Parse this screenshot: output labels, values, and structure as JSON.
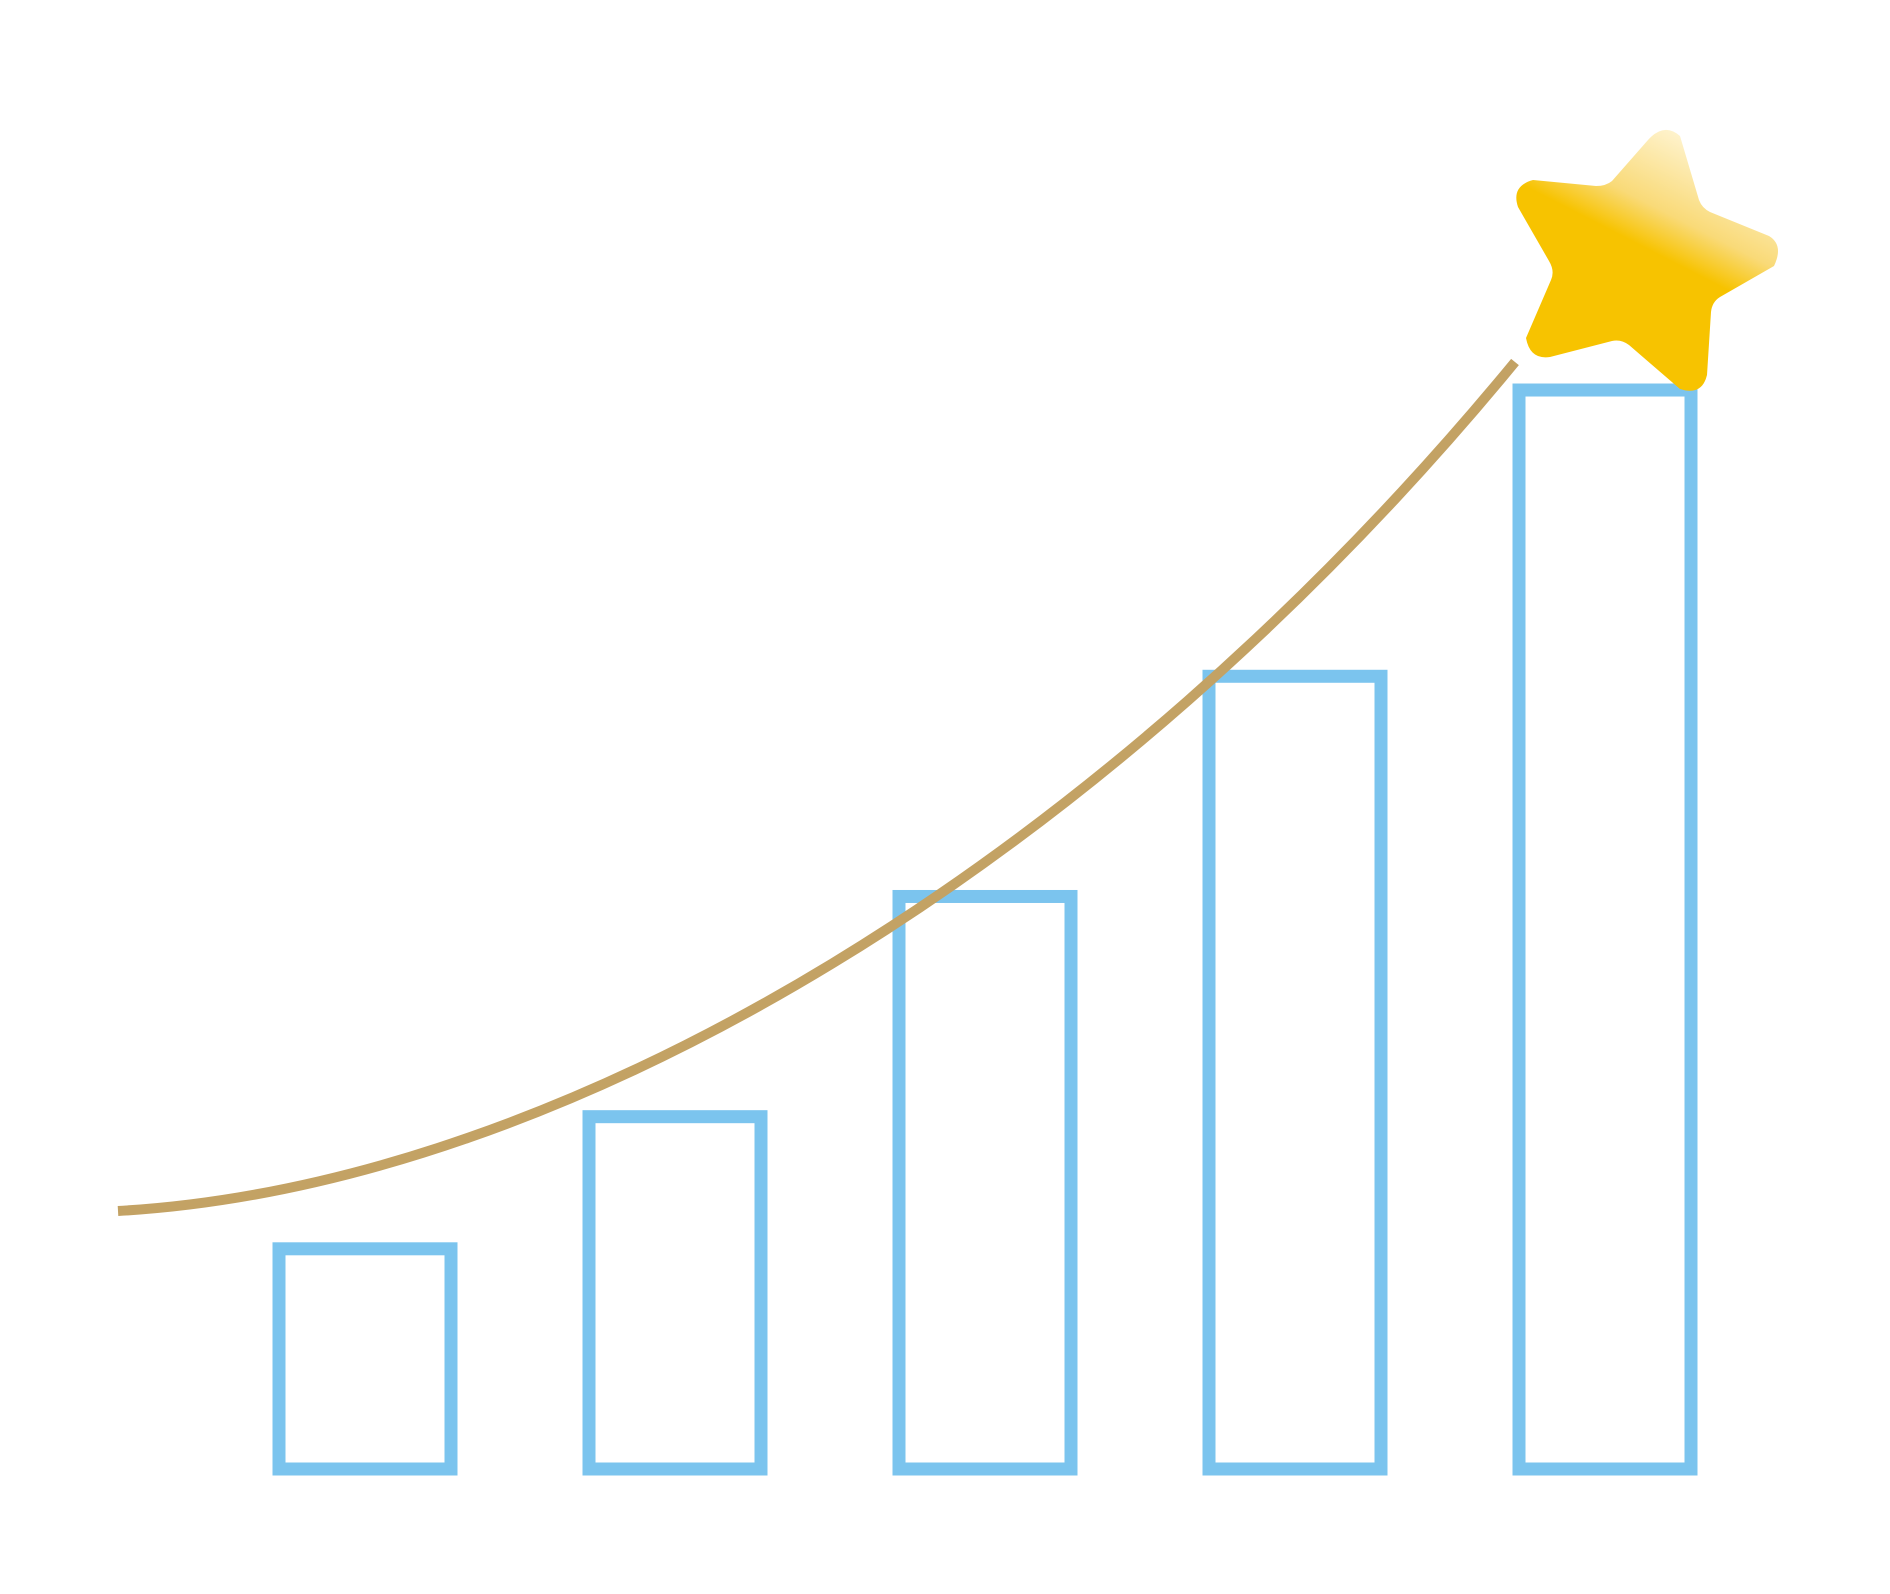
{
  "chart_data": {
    "type": "bar",
    "title": "",
    "xlabel": "",
    "ylabel": "",
    "categories": [
      "",
      "",
      "",
      "",
      ""
    ],
    "values": [
      1,
      1.6,
      2.6,
      3.6,
      4.9
    ],
    "ylim": [
      0,
      5
    ],
    "grid": false,
    "legend": "none",
    "trend_line": {
      "type": "curve",
      "description_kind": "growth",
      "start": {
        "x": 0.6,
        "y": 1.3
      },
      "end": {
        "x": 4.9,
        "y": 5.8
      }
    },
    "annotations": [
      {
        "kind": "star",
        "label": ""
      }
    ]
  },
  "colors": {
    "bar_stroke": "#7BC4EE",
    "trend_line": "#C3A264",
    "star_primary": "#F7C300",
    "star_highlight": "#FFF6D8",
    "background": "#FFFFFF"
  },
  "icons": {
    "goal": "star-icon"
  }
}
